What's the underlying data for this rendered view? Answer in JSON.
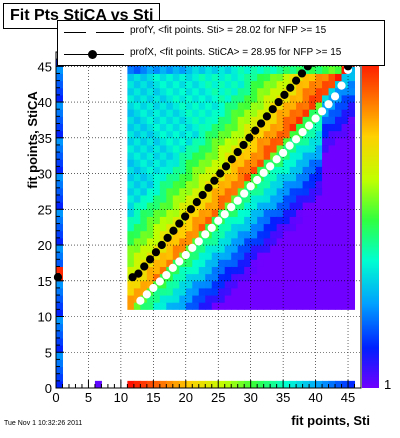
{
  "chart_data": {
    "type": "heatmap",
    "title": "Fit Pts StiCA vs Sti",
    "xlabel": "fit points, Sti",
    "ylabel": "fit points, StiCA",
    "xlim": [
      0,
      47
    ],
    "ylim": [
      0,
      47
    ],
    "x_ticks": [
      0,
      5,
      10,
      15,
      20,
      25,
      30,
      35,
      40,
      45
    ],
    "y_ticks": [
      0,
      5,
      10,
      15,
      20,
      25,
      30,
      35,
      40,
      45
    ],
    "grid": true,
    "z_scale": "log",
    "palette_label_tail": "1",
    "legend_placement": "top",
    "legend": [
      "profY, <fit points. Sti> =   28.02 for NFP >= 15",
      "profX, <fit points. StiCA> =   28.95 for NFP >= 15"
    ],
    "series": [
      {
        "name": "profY",
        "marker": "open-circle",
        "x": [
          13,
          14,
          15,
          16,
          17,
          18,
          19,
          20,
          21,
          22,
          23,
          24,
          25,
          26,
          27,
          28,
          29,
          30,
          31,
          32,
          33,
          34,
          35,
          36,
          37,
          38,
          39,
          40,
          41,
          42,
          43,
          44,
          45
        ],
        "y": [
          12.2,
          13.1,
          14.0,
          14.9,
          15.8,
          16.8,
          17.7,
          18.6,
          19.6,
          20.5,
          21.5,
          22.4,
          23.4,
          24.3,
          25.3,
          26.2,
          27.2,
          28.2,
          29.1,
          30.1,
          31.0,
          32.0,
          32.9,
          33.9,
          34.8,
          35.8,
          36.7,
          37.7,
          38.7,
          39.7,
          40.8,
          42.3,
          44.5
        ]
      },
      {
        "name": "profX",
        "marker": "filled-circle",
        "x": [
          0.3,
          11.8,
          12.7,
          13.6,
          14.5,
          15.4,
          16.3,
          17.2,
          18.1,
          19.0,
          19.9,
          20.8,
          21.7,
          22.6,
          23.5,
          24.4,
          25.3,
          26.2,
          27.1,
          28.0,
          28.9,
          29.8,
          30.7,
          31.6,
          32.5,
          33.4,
          34.3,
          35.2,
          36.1,
          37.0,
          37.9,
          38.8,
          39.7,
          40.6,
          41.5,
          42.4,
          43.3,
          44.2,
          45.0
        ],
        "y": [
          15.5,
          15.5,
          16,
          17,
          18,
          19,
          20,
          21,
          22,
          23,
          24,
          25,
          26,
          27,
          28,
          29,
          30,
          31,
          32,
          33,
          34,
          35,
          36,
          37,
          38,
          39,
          40,
          41,
          42,
          43,
          44,
          45,
          45.5,
          46,
          46,
          46,
          46,
          46,
          45
        ]
      }
    ],
    "date_stamp": "Tue Nov  1 10:32:26 2011",
    "colors": {
      "profX": "#000000",
      "profY": "#ffffff",
      "frame": "#000000",
      "grid": "#000000"
    }
  }
}
